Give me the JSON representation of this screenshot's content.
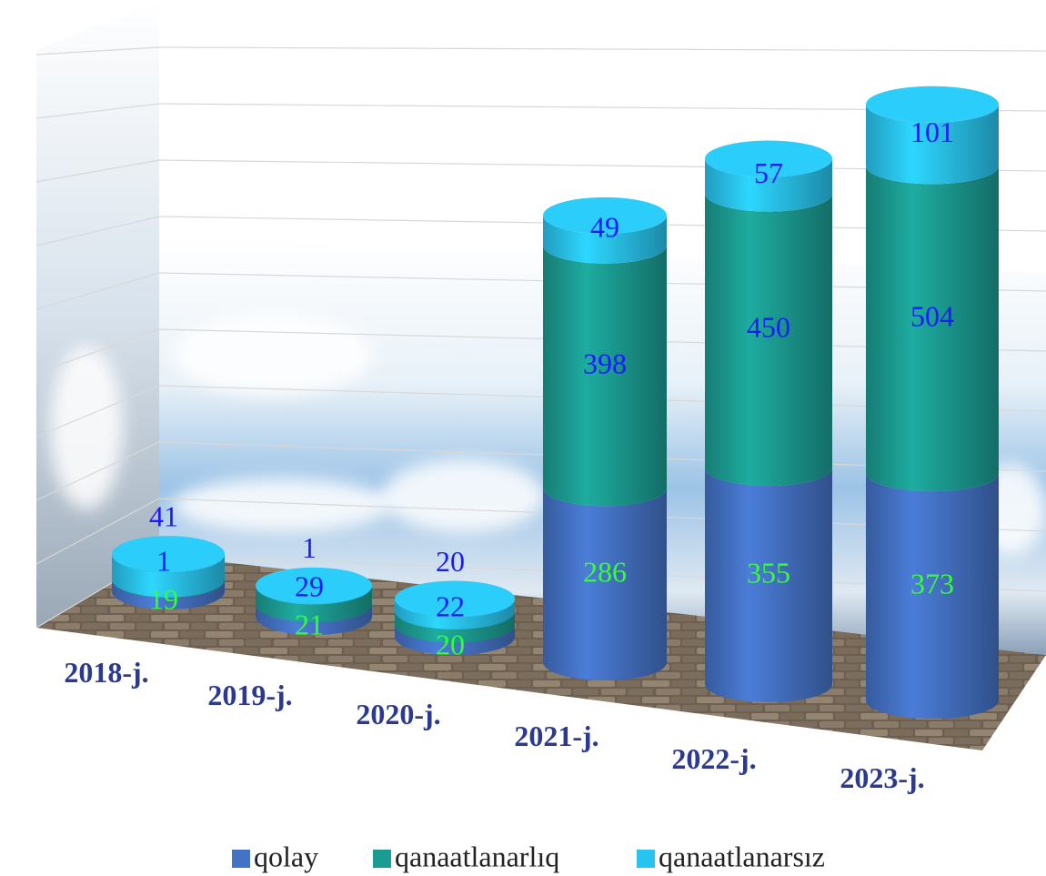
{
  "chart_data": {
    "type": "bar3d",
    "categories": [
      "2018-j.",
      "2019-j.",
      "2020-j.",
      "2021-j.",
      "2022-j.",
      "2023-j."
    ],
    "series": [
      {
        "name": "qolay",
        "color": "#4472c4",
        "label_color": "#33ff33",
        "values": [
          19,
          21,
          20,
          286,
          355,
          373
        ]
      },
      {
        "name": "qanaatlanarlıq",
        "color": "#1b9c91",
        "label_color": "#1a1aff",
        "values": [
          1,
          29,
          22,
          398,
          450,
          504
        ]
      },
      {
        "name": "qanaatlanarsız",
        "color": "#29c3ef",
        "label_color": "#1a1aff",
        "values": [
          41,
          1,
          20,
          49,
          57,
          101
        ]
      }
    ],
    "ylim": [
      0,
      1000
    ],
    "stacked": true
  }
}
